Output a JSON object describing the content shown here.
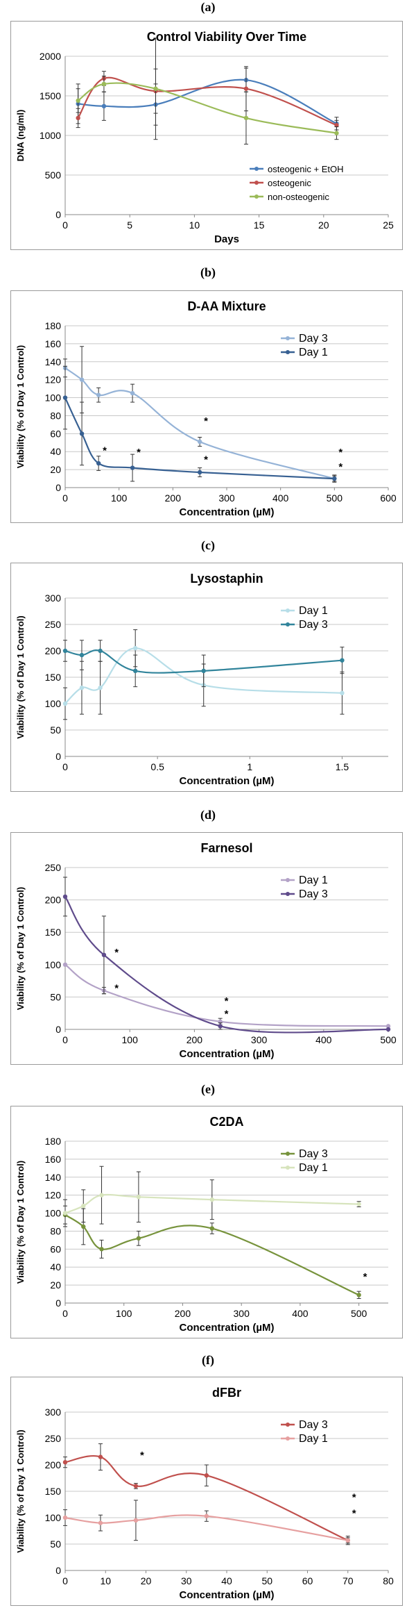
{
  "panel_labels": [
    "(a)",
    "(b)",
    "(c)",
    "(d)",
    "(e)",
    "(f)"
  ],
  "chart_data": [
    {
      "type": "line",
      "title": "Control Viability Over Time",
      "xlabel": "Days",
      "ylabel": "DNA (ng/ml)",
      "xlim": [
        0,
        25
      ],
      "ylim": [
        0,
        2000
      ],
      "xticks": [
        0,
        5,
        10,
        15,
        20,
        25
      ],
      "yticks": [
        0,
        500,
        1000,
        1500,
        2000
      ],
      "grid": true,
      "legend_position": "bottom-right",
      "series": [
        {
          "name": "osteogenic + EtOH",
          "color": "#4a7ebb",
          "points": [
            [
              1,
              1400
            ],
            [
              3,
              1370
            ],
            [
              7,
              1390
            ],
            [
              14,
              1700
            ],
            [
              21,
              1150
            ]
          ],
          "err": [
            250,
            180,
            260,
            150,
            80
          ]
        },
        {
          "name": "osteogenic",
          "color": "#c0504d",
          "points": [
            [
              1,
              1220
            ],
            [
              3,
              1720
            ],
            [
              7,
              1560
            ],
            [
              14,
              1590
            ],
            [
              21,
              1130
            ]
          ],
          "err": [
            120,
            90,
            280,
            280,
            60
          ]
        },
        {
          "name": "non-osteogenic",
          "color": "#9bbb59",
          "points": [
            [
              1,
              1440
            ],
            [
              3,
              1650
            ],
            [
              7,
              1590
            ],
            [
              14,
              1220
            ],
            [
              21,
              1030
            ]
          ],
          "err": [
            150,
            100,
            640,
            330,
            80
          ]
        }
      ],
      "annotations": []
    },
    {
      "type": "line",
      "title": "D-AA Mixture",
      "xlabel": "Concentration (µM)",
      "ylabel": "Viability (% of Day 1 Control)",
      "xlim": [
        0,
        600
      ],
      "ylim": [
        0,
        180
      ],
      "xticks": [
        0,
        100,
        200,
        300,
        400,
        500,
        600
      ],
      "yticks": [
        0,
        20,
        40,
        60,
        80,
        100,
        120,
        140,
        160,
        180
      ],
      "grid": true,
      "legend_position": "top-right",
      "series": [
        {
          "name": "Day 3",
          "color": "#95b3d7",
          "points": [
            [
              0,
              133
            ],
            [
              31,
              120
            ],
            [
              62,
              103
            ],
            [
              125,
              105
            ],
            [
              250,
              51
            ],
            [
              500,
              10
            ]
          ],
          "err": [
            10,
            37,
            8,
            10,
            5,
            3
          ]
        },
        {
          "name": "Day 1",
          "color": "#376092",
          "points": [
            [
              0,
              100
            ],
            [
              31,
              60
            ],
            [
              62,
              27
            ],
            [
              125,
              22
            ],
            [
              250,
              17
            ],
            [
              500,
              10
            ]
          ],
          "err": [
            35,
            35,
            8,
            15,
            5,
            4
          ]
        }
      ],
      "annotations": [
        {
          "text": "*",
          "x": 62,
          "y": 42
        },
        {
          "text": "*",
          "x": 125,
          "y": 40
        },
        {
          "text": "*",
          "x": 250,
          "y": 75
        },
        {
          "text": "*",
          "x": 250,
          "y": 32
        },
        {
          "text": "*",
          "x": 500,
          "y": 40
        },
        {
          "text": "*",
          "x": 500,
          "y": 24
        }
      ]
    },
    {
      "type": "line",
      "title": "Lysostaphin",
      "xlabel": "Concentration (µM)",
      "ylabel": "Viability (% of Day 1 Control)",
      "xlim": [
        0,
        1.75
      ],
      "ylim": [
        0,
        300
      ],
      "xticks": [
        0,
        0.5,
        1,
        1.5
      ],
      "yticks": [
        0,
        50,
        100,
        150,
        200,
        250,
        300
      ],
      "grid": true,
      "legend_position": "top-right",
      "series": [
        {
          "name": "Day 1",
          "color": "#b7dee8",
          "points": [
            [
              0,
              100
            ],
            [
              0.09,
              130
            ],
            [
              0.19,
              130
            ],
            [
              0.38,
              205
            ],
            [
              0.75,
              135
            ],
            [
              1.5,
              120
            ]
          ],
          "err": [
            30,
            50,
            50,
            35,
            40,
            40
          ]
        },
        {
          "name": "Day 3",
          "color": "#31849b",
          "points": [
            [
              0,
              200
            ],
            [
              0.09,
              192
            ],
            [
              0.19,
              200
            ],
            [
              0.38,
              162
            ],
            [
              0.75,
              162
            ],
            [
              1.5,
              182
            ]
          ],
          "err": [
            20,
            28,
            20,
            30,
            30,
            25
          ]
        }
      ],
      "annotations": []
    },
    {
      "type": "line",
      "title": "Farnesol",
      "xlabel": "Concentration (µM)",
      "ylabel": "Viability (% of Day 1 Control)",
      "xlim": [
        0,
        500
      ],
      "ylim": [
        0,
        250
      ],
      "xticks": [
        0,
        100,
        200,
        300,
        400,
        500
      ],
      "yticks": [
        0,
        50,
        100,
        150,
        200,
        250
      ],
      "grid": true,
      "legend_position": "top-right",
      "series": [
        {
          "name": "Day 1",
          "color": "#b3a2c7",
          "points": [
            [
              0,
              100
            ],
            [
              60,
              60
            ],
            [
              240,
              12
            ],
            [
              500,
              5
            ]
          ],
          "err": [
            0,
            5,
            5,
            0
          ]
        },
        {
          "name": "Day 3",
          "color": "#5f4b8b",
          "points": [
            [
              0,
              205
            ],
            [
              60,
              115
            ],
            [
              240,
              5
            ],
            [
              500,
              0
            ]
          ],
          "err": [
            30,
            60,
            5,
            0
          ]
        }
      ],
      "annotations": [
        {
          "text": "*",
          "x": 70,
          "y": 120
        },
        {
          "text": "*",
          "x": 70,
          "y": 65
        },
        {
          "text": "*",
          "x": 240,
          "y": 45
        },
        {
          "text": "*",
          "x": 240,
          "y": 25
        }
      ]
    },
    {
      "type": "line",
      "title": "C2DA",
      "xlabel": "Concentration (µM)",
      "ylabel": "Viability (% of Day 1 Control)",
      "xlim": [
        0,
        550
      ],
      "ylim": [
        0,
        180
      ],
      "xticks": [
        0,
        100,
        200,
        300,
        400,
        500
      ],
      "yticks": [
        0,
        20,
        40,
        60,
        80,
        100,
        120,
        140,
        160,
        180
      ],
      "grid": true,
      "legend_position": "top-right",
      "series": [
        {
          "name": "Day 3",
          "color": "#77933c",
          "points": [
            [
              0,
              98
            ],
            [
              31,
              85
            ],
            [
              62,
              60
            ],
            [
              125,
              72
            ],
            [
              250,
              83
            ],
            [
              500,
              9
            ]
          ],
          "err": [
            10,
            20,
            10,
            8,
            6,
            4
          ]
        },
        {
          "name": "Day 1",
          "color": "#d7e4bd",
          "points": [
            [
              0,
              100
            ],
            [
              31,
              108
            ],
            [
              62,
              120
            ],
            [
              125,
              118
            ],
            [
              250,
              115
            ],
            [
              500,
              110
            ]
          ],
          "err": [
            15,
            18,
            32,
            28,
            22,
            3
          ]
        }
      ],
      "annotations": [
        {
          "text": "*",
          "x": 500,
          "y": 30
        }
      ]
    },
    {
      "type": "line",
      "title": "dFBr",
      "xlabel": "Concentration (µM)",
      "ylabel": "Viability (% of Day 1 Control)",
      "xlim": [
        0,
        80
      ],
      "ylim": [
        0,
        300
      ],
      "xticks": [
        0,
        10,
        20,
        30,
        40,
        50,
        60,
        70,
        80
      ],
      "yticks": [
        0,
        50,
        100,
        150,
        200,
        250,
        300
      ],
      "grid": true,
      "legend_position": "top-right",
      "series": [
        {
          "name": "Day 3",
          "color": "#c0504d",
          "points": [
            [
              0,
              205
            ],
            [
              8.75,
              215
            ],
            [
              17.5,
              160
            ],
            [
              35,
              180
            ],
            [
              70,
              57
            ]
          ],
          "err": [
            10,
            25,
            5,
            20,
            5
          ]
        },
        {
          "name": "Day 1",
          "color": "#e6a0a0",
          "points": [
            [
              0,
              100
            ],
            [
              8.75,
              90
            ],
            [
              17.5,
              95
            ],
            [
              35,
              103
            ],
            [
              70,
              57
            ]
          ],
          "err": [
            15,
            15,
            38,
            10,
            8
          ]
        }
      ],
      "annotations": [
        {
          "text": "*",
          "x": 17.5,
          "y": 220
        },
        {
          "text": "*",
          "x": 70,
          "y": 140
        },
        {
          "text": "*",
          "x": 70,
          "y": 110
        }
      ]
    }
  ]
}
